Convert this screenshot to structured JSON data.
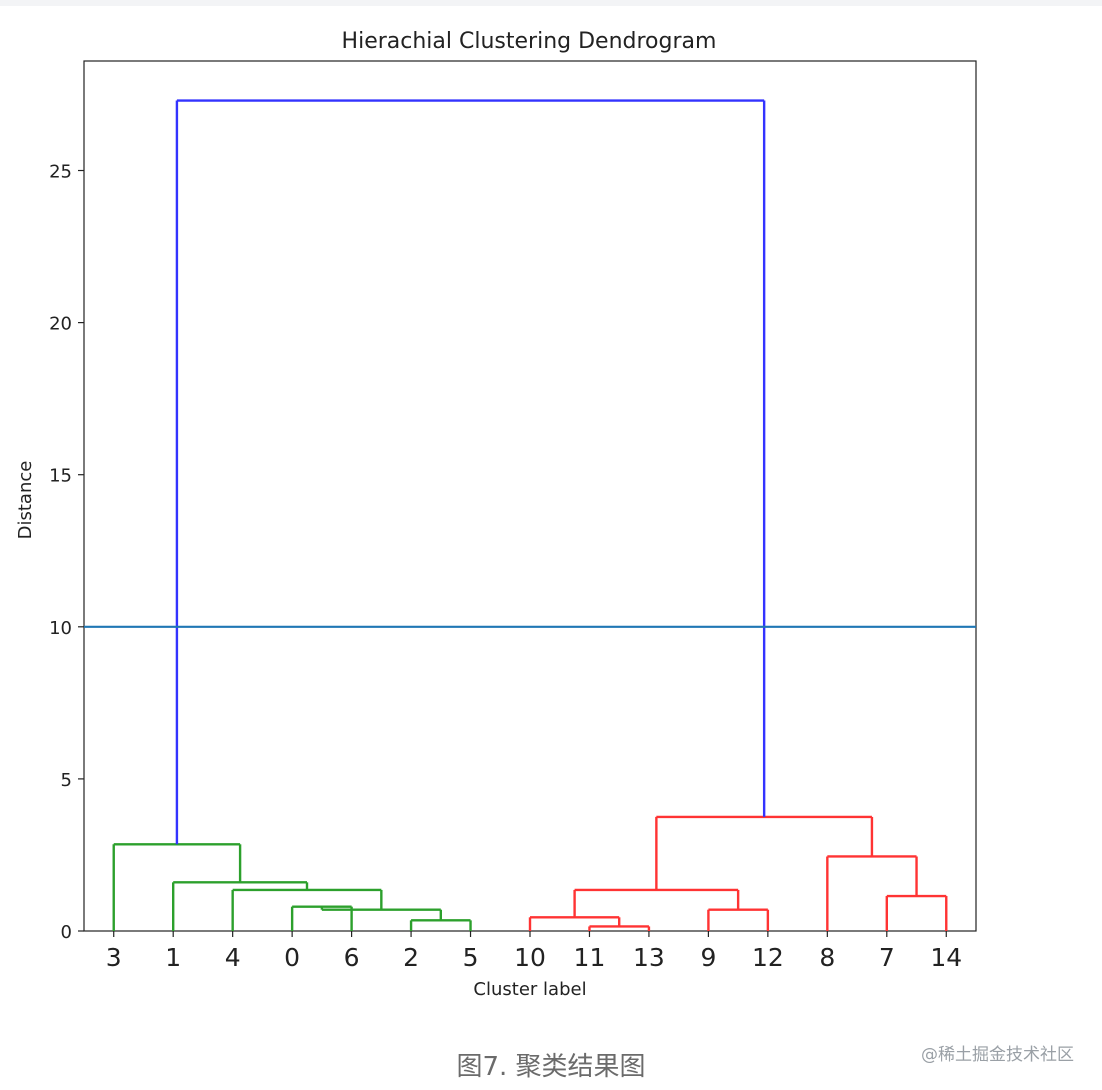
{
  "chart_data": {
    "type": "dendrogram",
    "title": "Hierachial Clustering Dendrogram",
    "xlabel": "Cluster label",
    "ylabel": "Distance",
    "ylim": [
      0,
      28.6
    ],
    "yticks": [
      0,
      5,
      10,
      15,
      20,
      25
    ],
    "grid": false,
    "leaf_order": [
      "3",
      "1",
      "4",
      "0",
      "6",
      "2",
      "5",
      "10",
      "11",
      "13",
      "9",
      "12",
      "8",
      "7",
      "14"
    ],
    "threshold_line": {
      "value": 10,
      "color": "#1f77b4"
    },
    "links": [
      {
        "left": "0",
        "right": "6",
        "height": 0.8,
        "color": "#2ca02c"
      },
      {
        "left": "2",
        "right": "5",
        "height": 0.35,
        "color": "#2ca02c"
      },
      {
        "left": "6",
        "right": "2",
        "height": 0.7,
        "color": "#2ca02c"
      },
      {
        "left": "4",
        "right": "0",
        "height": 1.35,
        "color": "#2ca02c"
      },
      {
        "left": "1",
        "right": "4",
        "height": 1.6,
        "color": "#2ca02c"
      },
      {
        "left": "3",
        "right": "1",
        "height": 2.85,
        "color": "#2ca02c"
      },
      {
        "left": "11",
        "right": "13",
        "height": 0.15,
        "color": "#ff3333"
      },
      {
        "left": "10",
        "right": "11",
        "height": 0.45,
        "color": "#ff3333"
      },
      {
        "left": "9",
        "right": "12",
        "height": 0.7,
        "color": "#ff3333"
      },
      {
        "left": "10",
        "right": "9",
        "height": 1.35,
        "color": "#ff3333"
      },
      {
        "left": "7",
        "right": "14",
        "height": 1.15,
        "color": "#ff3333"
      },
      {
        "left": "8",
        "right": "7",
        "height": 2.45,
        "color": "#ff3333"
      },
      {
        "left": "10",
        "right": "8",
        "height": 3.75,
        "color": "#ff3333"
      },
      {
        "left": "green-cluster",
        "right": "red-cluster",
        "height": 27.3,
        "color": "#3333ff"
      }
    ]
  },
  "caption": "图7. 聚类结果图",
  "watermark": "@稀土掘金技术社区"
}
